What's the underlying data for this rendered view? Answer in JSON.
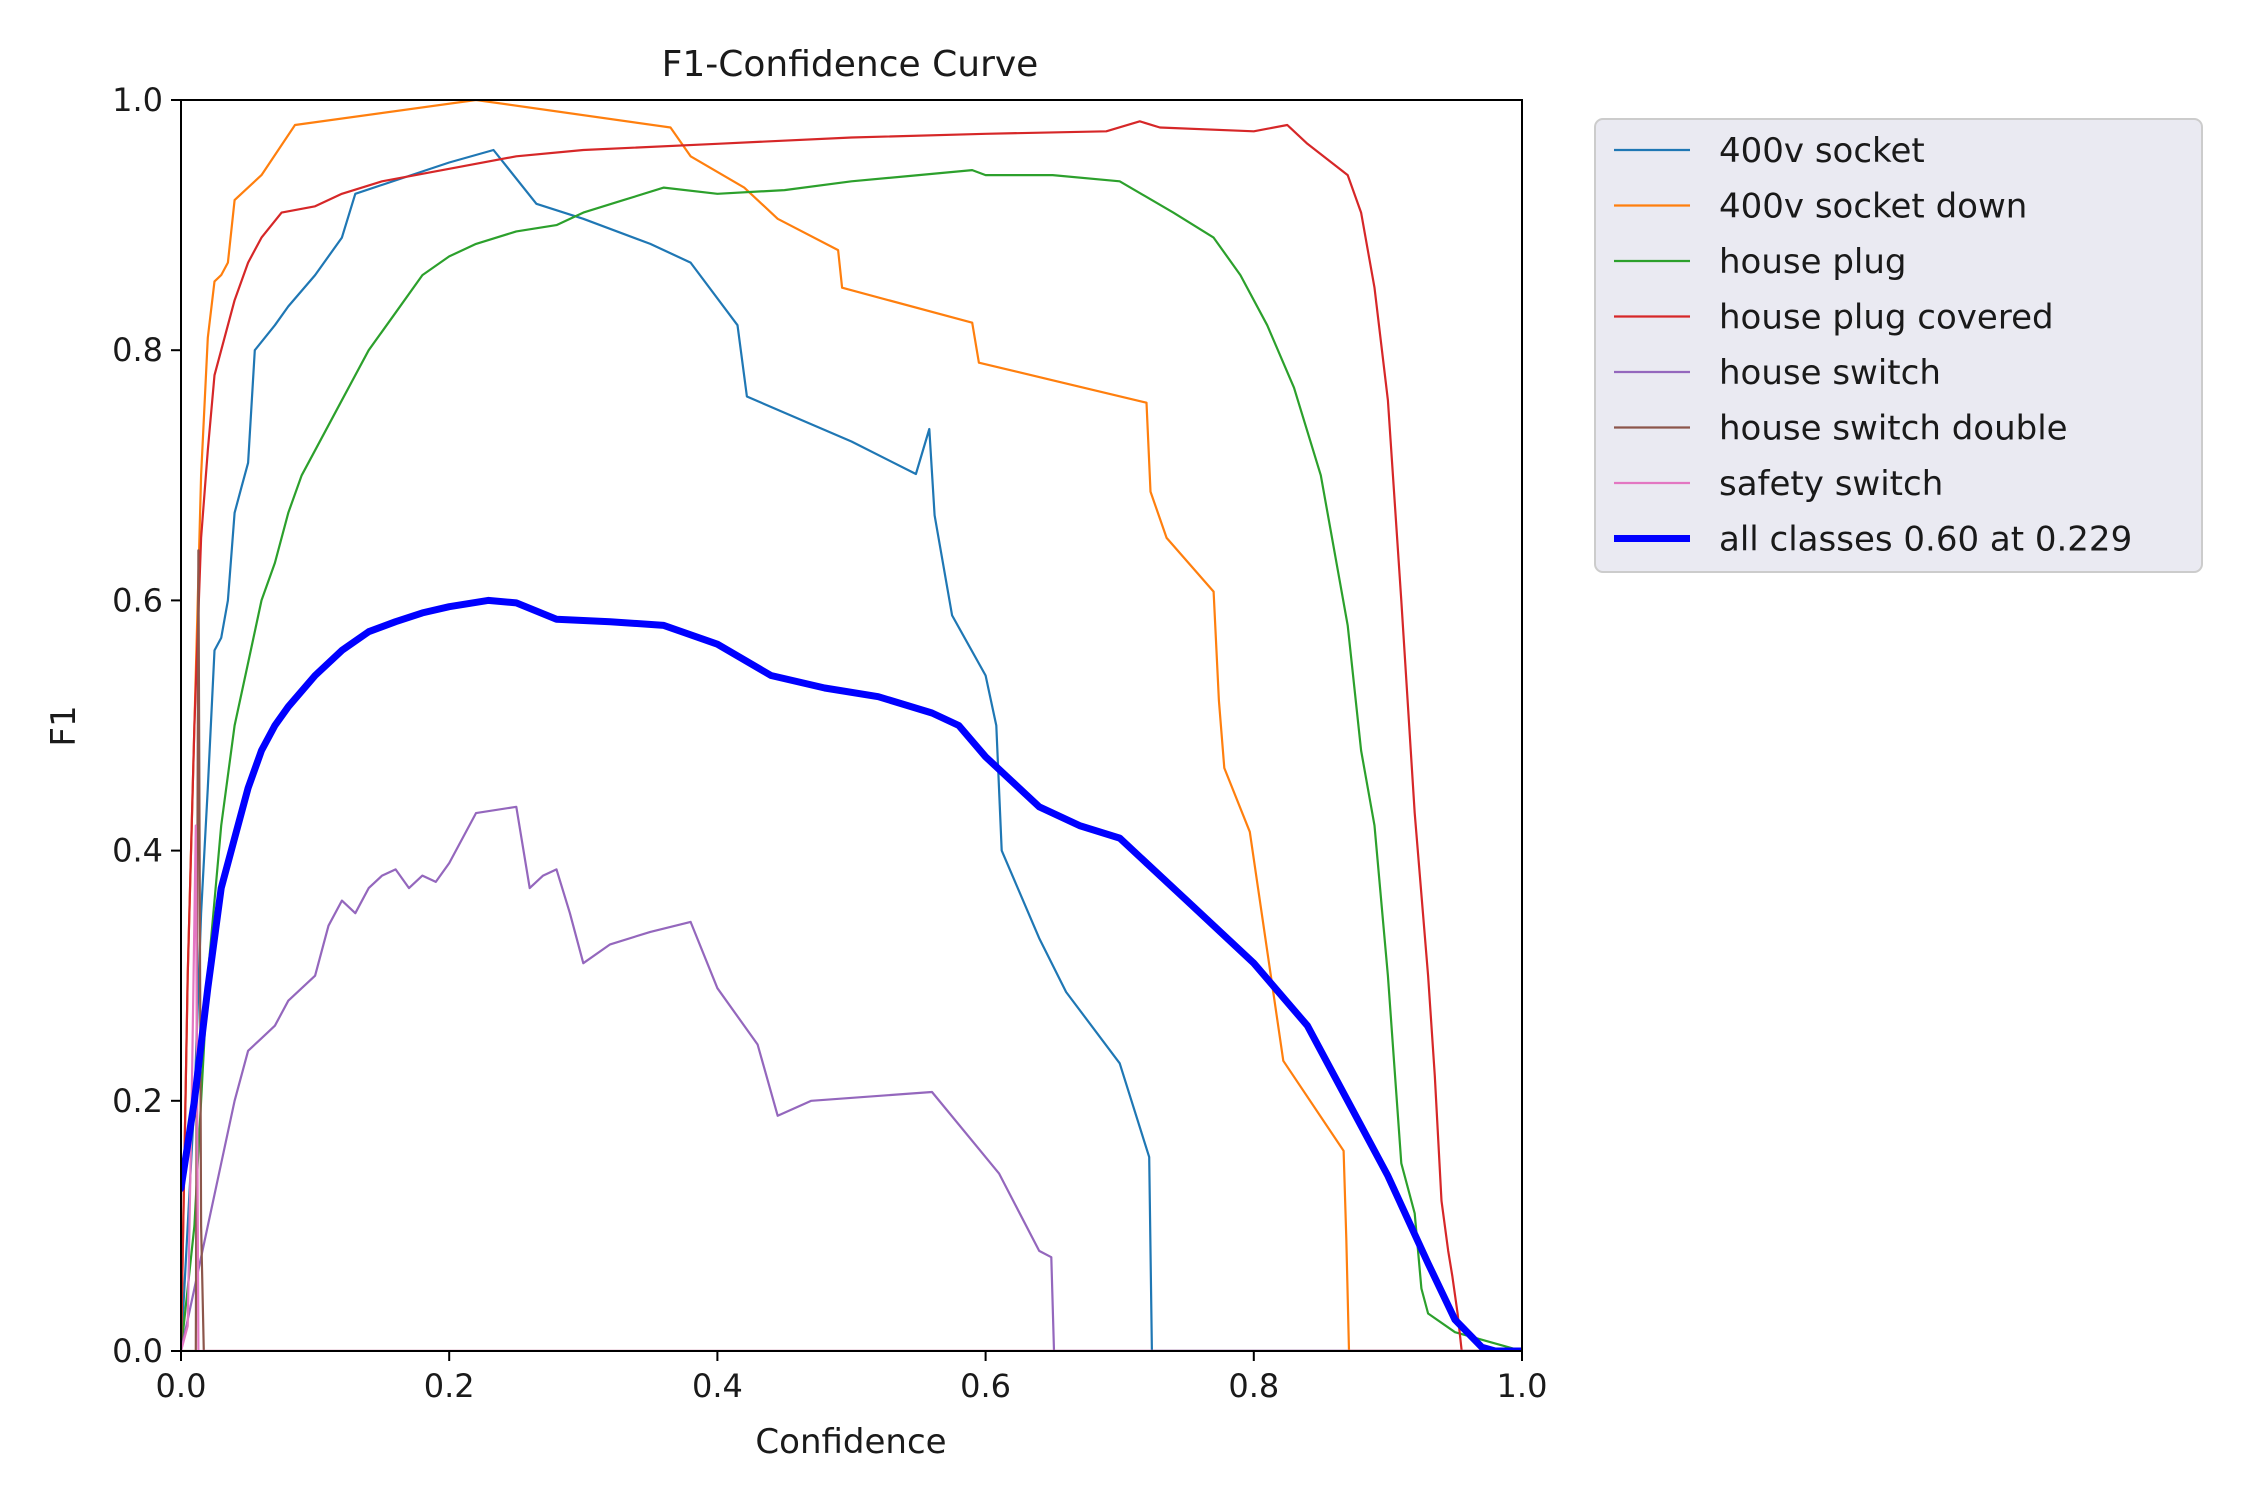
{
  "chart_data": {
    "type": "line",
    "title": "F1-Confidence Curve",
    "xlabel": "Confidence",
    "ylabel": "F1",
    "xlim": [
      0.0,
      1.0
    ],
    "ylim": [
      0.0,
      1.0
    ],
    "xticks": [
      "0.0",
      "0.2",
      "0.4",
      "0.6",
      "0.8",
      "1.0"
    ],
    "yticks": [
      "0.0",
      "0.2",
      "0.4",
      "0.6",
      "0.8",
      "1.0"
    ],
    "grid": false,
    "legend_position": "outside-upper-right",
    "series": [
      {
        "name": "400v socket",
        "color": "#1f77b4",
        "x": [
          0.0,
          0.01,
          0.015,
          0.02,
          0.025,
          0.03,
          0.035,
          0.04,
          0.045,
          0.05,
          0.055,
          0.07,
          0.08,
          0.1,
          0.12,
          0.13,
          0.2,
          0.233,
          0.265,
          0.3,
          0.35,
          0.38,
          0.415,
          0.422,
          0.45,
          0.5,
          0.548,
          0.558,
          0.562,
          0.575,
          0.6,
          0.608,
          0.612,
          0.64,
          0.66,
          0.7,
          0.722,
          0.724,
          0.726,
          1.0
        ],
        "y": [
          0.0,
          0.2,
          0.35,
          0.45,
          0.56,
          0.57,
          0.6,
          0.67,
          0.69,
          0.71,
          0.8,
          0.82,
          0.835,
          0.86,
          0.89,
          0.925,
          0.95,
          0.96,
          0.917,
          0.905,
          0.885,
          0.87,
          0.82,
          0.763,
          0.75,
          0.727,
          0.701,
          0.737,
          0.668,
          0.588,
          0.54,
          0.5,
          0.4,
          0.33,
          0.287,
          0.23,
          0.155,
          0.0,
          0.0,
          0.0
        ]
      },
      {
        "name": "400v socket down",
        "color": "#ff7f0e",
        "x": [
          0.0,
          0.005,
          0.01,
          0.015,
          0.02,
          0.025,
          0.03,
          0.035,
          0.04,
          0.045,
          0.06,
          0.085,
          0.22,
          0.365,
          0.38,
          0.42,
          0.445,
          0.49,
          0.493,
          0.59,
          0.595,
          0.72,
          0.723,
          0.735,
          0.77,
          0.774,
          0.778,
          0.797,
          0.822,
          0.867,
          0.869,
          0.871,
          1.0
        ],
        "y": [
          0.0,
          0.3,
          0.5,
          0.7,
          0.81,
          0.855,
          0.86,
          0.87,
          0.92,
          0.925,
          0.94,
          0.98,
          1.0,
          0.978,
          0.955,
          0.93,
          0.905,
          0.88,
          0.85,
          0.822,
          0.79,
          0.758,
          0.687,
          0.65,
          0.607,
          0.52,
          0.466,
          0.415,
          0.232,
          0.16,
          0.09,
          0.0,
          0.0
        ]
      },
      {
        "name": "house plug",
        "color": "#2ca02c",
        "x": [
          0.0,
          0.01,
          0.02,
          0.03,
          0.04,
          0.05,
          0.06,
          0.07,
          0.08,
          0.09,
          0.1,
          0.12,
          0.14,
          0.16,
          0.18,
          0.2,
          0.22,
          0.25,
          0.28,
          0.3,
          0.33,
          0.36,
          0.4,
          0.45,
          0.5,
          0.55,
          0.59,
          0.6,
          0.65,
          0.7,
          0.74,
          0.77,
          0.79,
          0.81,
          0.83,
          0.85,
          0.87,
          0.88,
          0.89,
          0.9,
          0.91,
          0.92,
          0.925,
          0.93,
          0.95,
          1.0
        ],
        "y": [
          0.0,
          0.1,
          0.3,
          0.42,
          0.5,
          0.55,
          0.6,
          0.63,
          0.67,
          0.7,
          0.72,
          0.76,
          0.8,
          0.83,
          0.86,
          0.875,
          0.885,
          0.895,
          0.9,
          0.91,
          0.92,
          0.93,
          0.925,
          0.928,
          0.935,
          0.94,
          0.944,
          0.94,
          0.94,
          0.935,
          0.91,
          0.89,
          0.86,
          0.82,
          0.77,
          0.7,
          0.58,
          0.48,
          0.42,
          0.3,
          0.15,
          0.11,
          0.05,
          0.03,
          0.015,
          0.0
        ]
      },
      {
        "name": "house plug covered",
        "color": "#d62728",
        "x": [
          0.0,
          0.005,
          0.01,
          0.015,
          0.02,
          0.025,
          0.03,
          0.04,
          0.05,
          0.06,
          0.075,
          0.1,
          0.12,
          0.15,
          0.2,
          0.25,
          0.3,
          0.4,
          0.5,
          0.6,
          0.69,
          0.715,
          0.73,
          0.8,
          0.825,
          0.84,
          0.87,
          0.88,
          0.89,
          0.9,
          0.91,
          0.92,
          0.93,
          0.935,
          0.94,
          0.945,
          0.948,
          0.952,
          0.955,
          1.0
        ],
        "y": [
          0.0,
          0.3,
          0.5,
          0.65,
          0.72,
          0.78,
          0.8,
          0.84,
          0.87,
          0.89,
          0.91,
          0.915,
          0.925,
          0.935,
          0.945,
          0.955,
          0.96,
          0.965,
          0.97,
          0.973,
          0.975,
          0.983,
          0.978,
          0.975,
          0.98,
          0.965,
          0.94,
          0.91,
          0.85,
          0.76,
          0.6,
          0.43,
          0.3,
          0.22,
          0.12,
          0.08,
          0.06,
          0.03,
          0.0,
          0.0
        ]
      },
      {
        "name": "house switch",
        "color": "#9467bd",
        "x": [
          0.0,
          0.01,
          0.02,
          0.03,
          0.04,
          0.05,
          0.06,
          0.07,
          0.08,
          0.09,
          0.1,
          0.11,
          0.12,
          0.13,
          0.14,
          0.15,
          0.16,
          0.17,
          0.18,
          0.19,
          0.2,
          0.21,
          0.22,
          0.25,
          0.26,
          0.27,
          0.28,
          0.29,
          0.3,
          0.32,
          0.35,
          0.38,
          0.4,
          0.43,
          0.445,
          0.47,
          0.56,
          0.61,
          0.64,
          0.649,
          0.651,
          1.0
        ],
        "y": [
          0.0,
          0.05,
          0.1,
          0.15,
          0.2,
          0.24,
          0.25,
          0.26,
          0.28,
          0.29,
          0.3,
          0.34,
          0.36,
          0.35,
          0.37,
          0.38,
          0.385,
          0.37,
          0.38,
          0.375,
          0.39,
          0.41,
          0.43,
          0.435,
          0.37,
          0.38,
          0.385,
          0.35,
          0.31,
          0.325,
          0.335,
          0.343,
          0.29,
          0.245,
          0.188,
          0.2,
          0.207,
          0.142,
          0.08,
          0.075,
          0.0,
          0.0
        ]
      },
      {
        "name": "house switch double",
        "color": "#8c564b",
        "x": [
          0.0,
          0.011,
          0.013,
          0.015,
          0.017,
          1.0
        ],
        "y": [
          0.0,
          0.0,
          0.64,
          0.1,
          0.0,
          0.0
        ]
      },
      {
        "name": "safety switch",
        "color": "#e377c2",
        "x": [
          0.0,
          0.005,
          0.008,
          0.011,
          0.013,
          1.0
        ],
        "y": [
          0.0,
          0.02,
          0.2,
          0.42,
          0.0,
          0.0
        ]
      },
      {
        "name": "all classes 0.60 at 0.229",
        "color": "#0000ff",
        "thick": true,
        "x": [
          0.0,
          0.01,
          0.02,
          0.03,
          0.04,
          0.05,
          0.06,
          0.07,
          0.08,
          0.1,
          0.12,
          0.14,
          0.16,
          0.18,
          0.2,
          0.229,
          0.25,
          0.28,
          0.32,
          0.36,
          0.4,
          0.44,
          0.48,
          0.52,
          0.56,
          0.58,
          0.6,
          0.62,
          0.64,
          0.67,
          0.7,
          0.75,
          0.8,
          0.84,
          0.87,
          0.9,
          0.93,
          0.95,
          0.97,
          0.98,
          1.0
        ],
        "y": [
          0.13,
          0.2,
          0.29,
          0.37,
          0.41,
          0.45,
          0.48,
          0.5,
          0.515,
          0.54,
          0.56,
          0.575,
          0.583,
          0.59,
          0.595,
          0.6,
          0.598,
          0.585,
          0.583,
          0.58,
          0.565,
          0.54,
          0.53,
          0.523,
          0.51,
          0.5,
          0.475,
          0.455,
          0.435,
          0.42,
          0.41,
          0.36,
          0.31,
          0.26,
          0.2,
          0.14,
          0.07,
          0.025,
          0.003,
          0.0,
          0.0
        ]
      }
    ]
  }
}
